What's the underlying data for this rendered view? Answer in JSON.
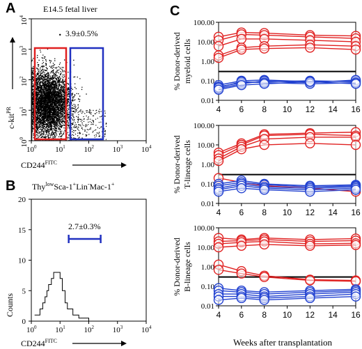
{
  "panels": {
    "A": {
      "letter": "A",
      "title": "E14.5 fetal liver",
      "annotation": "3.9±0.5%",
      "ylabel_base": "c-kit",
      "ylabel_sup": "PR",
      "xlabel_base": "CD244",
      "xlabel_sup": "FITC",
      "x_ticks_base": [
        "10",
        "10",
        "10",
        "10",
        "10"
      ],
      "x_ticks_exp": [
        "0",
        "1",
        "2",
        "3",
        "4"
      ],
      "y_ticks_base": [
        "10",
        "10",
        "10",
        "10",
        "10"
      ],
      "y_ticks_exp": [
        "0",
        "1",
        "2",
        "3",
        "4"
      ],
      "gate_colors": {
        "left": "#e02020",
        "right": "#2030c0"
      }
    },
    "B": {
      "letter": "B",
      "title_parts": [
        "Thy",
        "low",
        "Sca-1",
        "+",
        "Lin",
        "-",
        "Mac-1",
        "+"
      ],
      "annotation": "2.7±0.3%",
      "ylabel": "Counts",
      "xlabel_base": "CD244",
      "xlabel_sup": "FITC",
      "y_ticks": [
        "0",
        "5",
        "10",
        "15",
        "20"
      ],
      "x_ticks_base": [
        "10",
        "10",
        "10",
        "10",
        "10"
      ],
      "x_ticks_exp": [
        "0",
        "1",
        "2",
        "3",
        "4"
      ],
      "gate_color": "#2030c0"
    },
    "C": {
      "letter": "C",
      "xlabel": "Weeks after transplantation",
      "red": "#e02020",
      "blue": "#2040d0"
    }
  },
  "chart_data": [
    {
      "type": "scatter",
      "panel": "A",
      "xlabel": "CD244FITC",
      "ylabel": "c-kitPR",
      "xscale": "log",
      "yscale": "log",
      "xlim": [
        1,
        10000
      ],
      "ylim": [
        1,
        10000
      ],
      "gates": [
        {
          "color": "red",
          "x": [
            1,
            12
          ],
          "y": [
            1.1,
            1000
          ]
        },
        {
          "color": "blue",
          "x": [
            16,
            260
          ],
          "y": [
            1.1,
            1000
          ],
          "label": "3.9±0.5%"
        }
      ]
    },
    {
      "type": "line",
      "panel": "B",
      "xlabel": "CD244FITC",
      "ylabel": "Counts",
      "xscale": "log",
      "xlim": [
        1,
        10000
      ],
      "ylim": [
        0,
        20
      ],
      "x": [
        1.3,
        1.6,
        2,
        2.5,
        3,
        3.5,
        4,
        5,
        6,
        7,
        8,
        10,
        12,
        15,
        18,
        22,
        28,
        35,
        45,
        60,
        80,
        100
      ],
      "y": [
        1,
        1,
        2,
        3,
        4,
        5,
        6,
        7,
        8,
        8,
        8,
        7,
        5,
        3,
        2,
        2,
        1,
        1,
        0.5,
        0.5,
        0.5,
        0
      ],
      "gate": {
        "x": [
          20,
          260
        ],
        "label": "2.7±0.3%"
      }
    },
    {
      "type": "line",
      "panel": "C-myeloid",
      "ylabel": "% Donor-derived myeloid cells",
      "xlabel": "Weeks after transplantation",
      "yscale": "log",
      "ylim": [
        0.01,
        100
      ],
      "y_ticks": [
        "100.00",
        "10.00",
        "1.00",
        "0.10",
        "0.01"
      ],
      "x_ticks": [
        "4",
        "6",
        "8",
        "10",
        "12",
        "14",
        "16"
      ],
      "threshold": 0.3,
      "x": [
        4,
        6,
        8,
        12,
        16
      ],
      "series": [
        {
          "color": "red",
          "values": [
            18,
            30,
            28,
            22,
            20
          ]
        },
        {
          "color": "red",
          "values": [
            12,
            24,
            22,
            18,
            15
          ]
        },
        {
          "color": "red",
          "values": [
            6,
            14,
            14,
            12,
            10
          ]
        },
        {
          "color": "red",
          "values": [
            2,
            5,
            6,
            7,
            6
          ]
        },
        {
          "color": "red",
          "values": [
            1.5,
            4,
            4.5,
            5,
            4
          ]
        },
        {
          "color": "blue",
          "values": [
            0.06,
            0.1,
            0.11,
            0.09,
            0.1
          ]
        },
        {
          "color": "blue",
          "values": [
            0.05,
            0.08,
            0.09,
            0.1,
            0.09
          ]
        },
        {
          "color": "blue",
          "values": [
            0.04,
            0.07,
            0.1,
            0.08,
            0.11
          ]
        },
        {
          "color": "blue",
          "values": [
            0.045,
            0.09,
            0.08,
            0.07,
            0.08
          ]
        },
        {
          "color": "blue",
          "values": [
            0.035,
            0.06,
            0.07,
            0.09,
            0.07
          ]
        }
      ]
    },
    {
      "type": "line",
      "panel": "C-T-lineage",
      "ylabel": "% Donor-derived T-lineage cells",
      "xlabel": "Weeks after transplantation",
      "yscale": "log",
      "ylim": [
        0.01,
        100
      ],
      "y_ticks": [
        "100.00",
        "10.00",
        "1.00",
        "0.10",
        "0.01"
      ],
      "x_ticks": [
        "4",
        "6",
        "8",
        "10",
        "12",
        "14",
        "16"
      ],
      "threshold": 0.3,
      "x": [
        4,
        6,
        8,
        12,
        16
      ],
      "series": [
        {
          "color": "red",
          "values": [
            4,
            12,
            35,
            40,
            45
          ]
        },
        {
          "color": "red",
          "values": [
            3,
            10,
            30,
            35,
            30
          ]
        },
        {
          "color": "red",
          "values": [
            2,
            8,
            20,
            25,
            25
          ]
        },
        {
          "color": "red",
          "values": [
            1.5,
            6,
            10,
            12,
            10
          ]
        },
        {
          "color": "red",
          "values": [
            0.2,
            0.12,
            0.08,
            0.06,
            0.04
          ]
        },
        {
          "color": "blue",
          "values": [
            0.1,
            0.15,
            0.1,
            0.08,
            0.09
          ]
        },
        {
          "color": "blue",
          "values": [
            0.08,
            0.12,
            0.09,
            0.07,
            0.08
          ]
        },
        {
          "color": "blue",
          "values": [
            0.06,
            0.1,
            0.07,
            0.06,
            0.07
          ]
        },
        {
          "color": "blue",
          "values": [
            0.05,
            0.08,
            0.06,
            0.05,
            0.06
          ]
        },
        {
          "color": "blue",
          "values": [
            0.04,
            0.06,
            0.05,
            0.04,
            0.05
          ]
        }
      ]
    },
    {
      "type": "line",
      "panel": "C-B-lineage",
      "ylabel": "% Donor-derived B-lineage cells",
      "xlabel": "Weeks after transplantation",
      "yscale": "log",
      "ylim": [
        0.01,
        100
      ],
      "y_ticks": [
        "100.00",
        "10.00",
        "1.00",
        "0.10",
        "0.01"
      ],
      "x_ticks": [
        "4",
        "6",
        "8",
        "10",
        "12",
        "14",
        "16"
      ],
      "threshold": 0.3,
      "x": [
        4,
        6,
        8,
        12,
        16
      ],
      "series": [
        {
          "color": "red",
          "values": [
            30,
            25,
            30,
            25,
            28
          ]
        },
        {
          "color": "red",
          "values": [
            20,
            22,
            25,
            20,
            22
          ]
        },
        {
          "color": "red",
          "values": [
            15,
            18,
            20,
            15,
            16
          ]
        },
        {
          "color": "red",
          "values": [
            10,
            12,
            14,
            12,
            13
          ]
        },
        {
          "color": "red",
          "values": [
            1.3,
            0.6,
            0.35,
            0.22,
            0.2
          ]
        },
        {
          "color": "red",
          "values": [
            0.7,
            0.45,
            0.3,
            0.2,
            0.18
          ]
        },
        {
          "color": "blue",
          "values": [
            0.08,
            0.06,
            0.05,
            0.06,
            0.07
          ]
        },
        {
          "color": "blue",
          "values": [
            0.06,
            0.05,
            0.04,
            0.05,
            0.06
          ]
        },
        {
          "color": "blue",
          "values": [
            0.04,
            0.04,
            0.03,
            0.04,
            0.05
          ]
        },
        {
          "color": "blue",
          "values": [
            0.03,
            0.03,
            0.025,
            0.03,
            0.04
          ]
        },
        {
          "color": "blue",
          "values": [
            0.02,
            0.025,
            0.02,
            0.025,
            0.03
          ]
        }
      ]
    }
  ]
}
